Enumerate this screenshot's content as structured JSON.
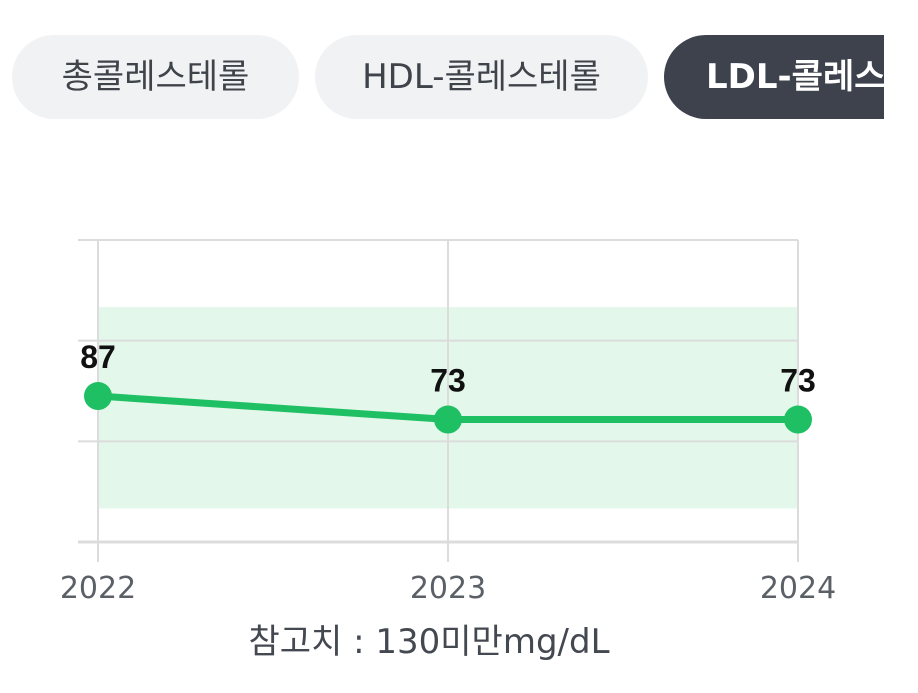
{
  "tabs": [
    {
      "label": "총콜레스테롤",
      "active": false
    },
    {
      "label": "HDL-콜레스테롤",
      "active": false
    },
    {
      "label": "LDL-콜레스",
      "active": true
    }
  ],
  "colors": {
    "line": "#1fbf64",
    "band": "#e3f7ea",
    "grid": "#dcdcdc",
    "axis_text": "#5b5f66",
    "value_text": "#111111",
    "tab_active_bg": "#3d424d",
    "tab_inactive_bg": "#f1f2f4"
  },
  "chart_data": {
    "type": "line",
    "x": [
      "2022",
      "2023",
      "2024"
    ],
    "series": [
      {
        "values": [
          87,
          73,
          73
        ]
      }
    ],
    "data_labels": [
      "87",
      "73",
      "73"
    ],
    "reference_band": [
      20,
      140
    ],
    "ylim": [
      0,
      180
    ],
    "grid": true
  },
  "reference_text": "참고치 : 130미만mg/dL"
}
